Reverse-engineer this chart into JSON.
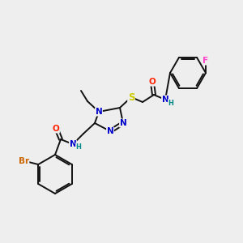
{
  "bg_color": "#eeeeee",
  "atom_colors": {
    "C": "#000000",
    "N": "#0000cc",
    "O": "#ff2200",
    "S": "#cccc00",
    "Br": "#cc6600",
    "F": "#ff44cc",
    "H": "#008888"
  },
  "bond_color": "#111111",
  "bond_width": 1.4,
  "font_size_atom": 7.5,
  "font_size_small": 6.0
}
